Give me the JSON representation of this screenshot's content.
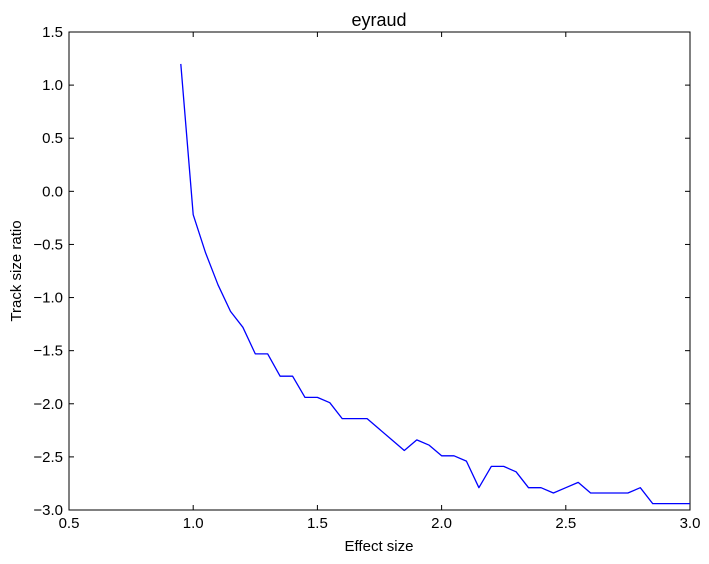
{
  "chart_data": {
    "type": "line",
    "title": "eyraud",
    "xlabel": "Effect size",
    "ylabel": "Track size ratio",
    "xlim": [
      0.5,
      3.0
    ],
    "ylim": [
      -3.0,
      1.5
    ],
    "xticks": [
      "0.5",
      "1.0",
      "1.5",
      "2.0",
      "2.5",
      "3.0"
    ],
    "yticks": [
      "1.5",
      "1.0",
      "0.5",
      "0.0",
      "−0.5",
      "−1.0",
      "−1.5",
      "−2.0",
      "−2.5",
      "−3.0"
    ],
    "xtick_values": [
      0.5,
      1.0,
      1.5,
      2.0,
      2.5,
      3.0
    ],
    "ytick_values": [
      1.5,
      1.0,
      0.5,
      0.0,
      -0.5,
      -1.0,
      -1.5,
      -2.0,
      -2.5,
      -3.0
    ],
    "grid": false,
    "series": [
      {
        "color": "#0000ff",
        "x": [
          0.95,
          1.0,
          1.05,
          1.1,
          1.15,
          1.2,
          1.25,
          1.3,
          1.35,
          1.4,
          1.45,
          1.5,
          1.55,
          1.6,
          1.65,
          1.7,
          1.75,
          1.8,
          1.85,
          1.9,
          1.95,
          2.0,
          2.05,
          2.1,
          2.15,
          2.2,
          2.25,
          2.3,
          2.35,
          2.4,
          2.45,
          2.5,
          2.55,
          2.6,
          2.65,
          2.7,
          2.75,
          2.8,
          2.85,
          2.9,
          2.95,
          3.0
        ],
        "y": [
          1.2,
          -0.22,
          -0.58,
          -0.88,
          -1.13,
          -1.28,
          -1.53,
          -1.53,
          -1.74,
          -1.74,
          -1.94,
          -1.94,
          -1.99,
          -2.14,
          -2.14,
          -2.14,
          -2.24,
          -2.34,
          -2.44,
          -2.34,
          -2.39,
          -2.49,
          -2.49,
          -2.54,
          -2.79,
          -2.59,
          -2.59,
          -2.64,
          -2.79,
          -2.79,
          -2.84,
          -2.79,
          -2.74,
          -2.84,
          -2.84,
          -2.84,
          -2.84,
          -2.79,
          -2.94,
          -2.94,
          -2.94,
          -2.94
        ]
      }
    ]
  }
}
